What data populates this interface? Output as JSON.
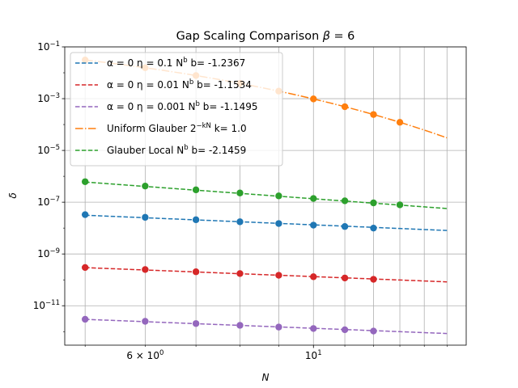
{
  "chart_data": {
    "type": "line",
    "title": "Gap Scaling Comparison β = 6",
    "title_parts": {
      "main": "Gap Scaling Comparison ",
      "beta_symbol": "β",
      "beta_value": " = 6"
    },
    "xlabel": "N",
    "ylabel": "δ",
    "x_scale": "log",
    "y_scale": "log",
    "xlim": [
      4.7,
      15.9
    ],
    "ylim": [
      3e-13,
      0.1
    ],
    "grid": true,
    "legend_position": "upper left",
    "x_ticks": [
      {
        "value": 6,
        "mantissa": "6 × 10",
        "exp": "0"
      },
      {
        "value": 10,
        "mantissa": "10",
        "exp": "1"
      }
    ],
    "y_ticks": [
      {
        "value": 1e-11,
        "mantissa": "10",
        "exp": "−11"
      },
      {
        "value": 1e-09,
        "mantissa": "10",
        "exp": "−9"
      },
      {
        "value": 1e-07,
        "mantissa": "10",
        "exp": "−7"
      },
      {
        "value": 1e-05,
        "mantissa": "10",
        "exp": "−5"
      },
      {
        "value": 0.001,
        "mantissa": "10",
        "exp": "−3"
      },
      {
        "value": 0.1,
        "mantissa": "10",
        "exp": "−1"
      }
    ],
    "series": [
      {
        "name": "α = 0 η = 0.1 N^b b= -1.2367",
        "legend": {
          "pre": "α = 0 η = 0.1 N",
          "sup": "b",
          "post": " b= -1.2367"
        },
        "color": "#1f77b4",
        "dash": "dashed",
        "points": {
          "x": [
            5,
            6,
            7,
            8,
            9,
            10,
            11,
            12
          ],
          "y": [
            3.3e-08,
            2.6e-08,
            2.1e-08,
            1.75e-08,
            1.5e-08,
            1.3e-08,
            1.15e-08,
            1e-08
          ]
        },
        "fit": {
          "a": 2.3e-07,
          "b": -1.2367,
          "x_range": [
            5,
            15
          ]
        }
      },
      {
        "name": "α = 0 η = 0.01 N^b b= -1.1534",
        "legend": {
          "pre": "α = 0 η = 0.01 N",
          "sup": "b",
          "post": " b= -1.1534"
        },
        "color": "#d62728",
        "dash": "dashed",
        "points": {
          "x": [
            5,
            6,
            7,
            8,
            9,
            10,
            11,
            12
          ],
          "y": [
            3e-10,
            2.5e-10,
            2.05e-10,
            1.75e-10,
            1.5e-10,
            1.32e-10,
            1.18e-10,
            1.05e-10
          ]
        },
        "fit": {
          "a": 1.9e-09,
          "b": -1.1534,
          "x_range": [
            5,
            15
          ]
        }
      },
      {
        "name": "α = 0 η = 0.001 N^b b= -1.1495",
        "legend": {
          "pre": "α = 0 η = 0.001 N",
          "sup": "b",
          "post": " b= -1.1495"
        },
        "color": "#9467bd",
        "dash": "dashed",
        "points": {
          "x": [
            5,
            6,
            7,
            8,
            9,
            10,
            11,
            12
          ],
          "y": [
            3e-12,
            2.5e-12,
            2.05e-12,
            1.75e-12,
            1.5e-12,
            1.32e-12,
            1.18e-12,
            1.05e-12
          ]
        },
        "fit": {
          "a": 1.9e-11,
          "b": -1.1495,
          "x_range": [
            5,
            15
          ]
        }
      },
      {
        "name": "Uniform Glauber 2^{-kN} k= 1.0",
        "legend": {
          "pre": "Uniform Glauber 2",
          "sup": "−kN",
          "post": " k= 1.0"
        },
        "color": "#ff7f0e",
        "dash": "dashdot",
        "points": {
          "x": [
            5,
            6,
            7,
            8,
            9,
            10,
            11,
            12,
            13
          ],
          "y": [
            0.03125,
            0.015625,
            0.0078125,
            0.00390625,
            0.001953125,
            0.0009765625,
            0.00048828125,
            0.000244140625,
            0.0001220703125
          ]
        },
        "fit": {
          "base": 2,
          "k": 1.0,
          "x_range": [
            5,
            15
          ]
        }
      },
      {
        "name": "Glauber Local N^b b= -2.1459",
        "legend": {
          "pre": "Glauber Local N",
          "sup": "b",
          "post": " b= -2.1459"
        },
        "color": "#2ca02c",
        "dash": "dashed",
        "points": {
          "x": [
            5,
            6,
            7,
            8,
            9,
            10,
            11,
            12,
            13
          ],
          "y": [
            6.2e-07,
            4.2e-07,
            3e-07,
            2.27e-07,
            1.75e-07,
            1.39e-07,
            1.13e-07,
            9.4e-08,
            7.9e-08
          ]
        },
        "fit": {
          "a": 1.9e-05,
          "b": -2.1459,
          "x_range": [
            5,
            15
          ]
        }
      }
    ]
  }
}
